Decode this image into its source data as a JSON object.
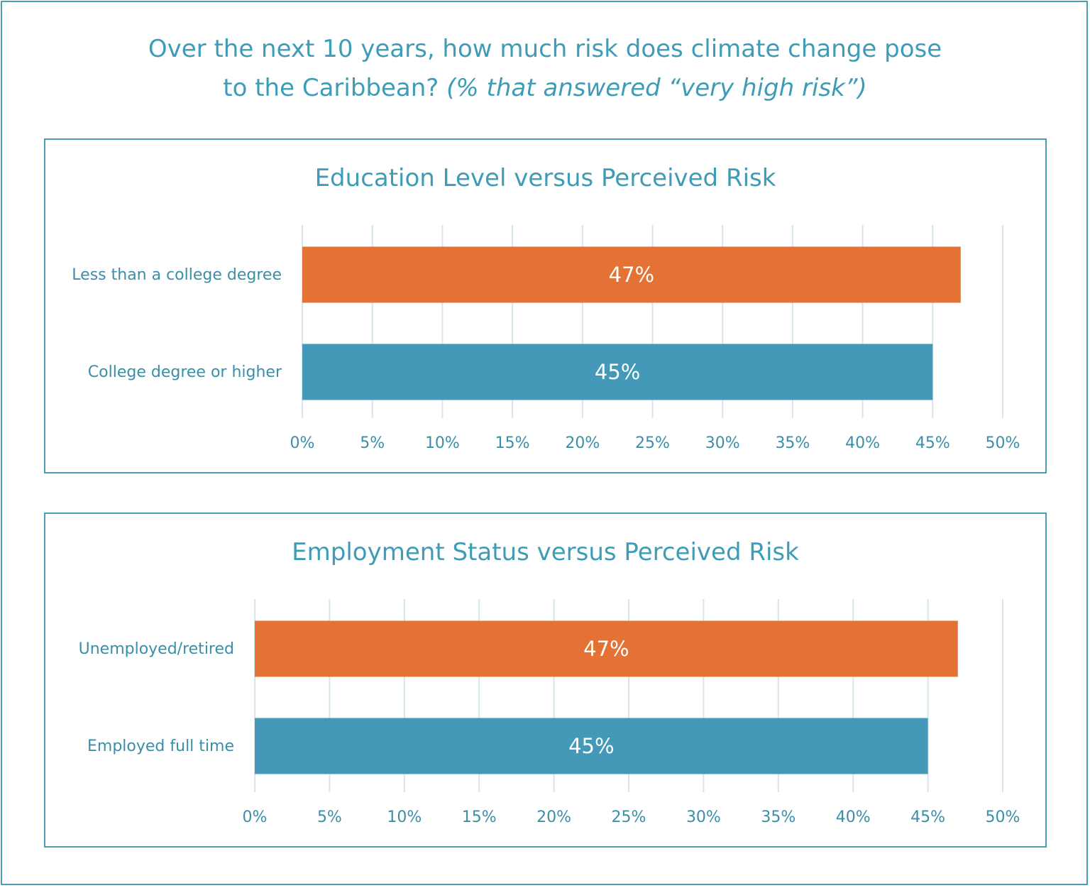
{
  "title": {
    "main": "Over the next 10 years, how much risk does climate change pose",
    "line2_plain": "to the Caribbean? ",
    "line2_italic": "(% that answered “very high risk”)"
  },
  "colors": {
    "orange": "#e57235",
    "teal": "#4399b7",
    "text": "#3f9cb6"
  },
  "chart_data": [
    {
      "type": "bar",
      "orientation": "horizontal",
      "title": "Education Level versus Perceived Risk",
      "categories": [
        "Less than a college degree",
        "College degree or higher"
      ],
      "values": [
        47,
        45
      ],
      "value_labels": [
        "47%",
        "45%"
      ],
      "bar_colors": [
        "#e57235",
        "#4399b7"
      ],
      "xlim": [
        0,
        50
      ],
      "xticks": [
        "0%",
        "5%",
        "10%",
        "15%",
        "20%",
        "25%",
        "30%",
        "35%",
        "40%",
        "45%",
        "50%"
      ],
      "grid": true
    },
    {
      "type": "bar",
      "orientation": "horizontal",
      "title": "Employment Status versus Perceived Risk",
      "categories": [
        "Unemployed/retired",
        "Employed full time"
      ],
      "values": [
        47,
        45
      ],
      "value_labels": [
        "47%",
        "45%"
      ],
      "bar_colors": [
        "#e57235",
        "#4399b7"
      ],
      "xlim": [
        0,
        50
      ],
      "xticks": [
        "0%",
        "5%",
        "10%",
        "15%",
        "20%",
        "25%",
        "30%",
        "35%",
        "40%",
        "45%",
        "50%"
      ],
      "grid": true
    }
  ]
}
